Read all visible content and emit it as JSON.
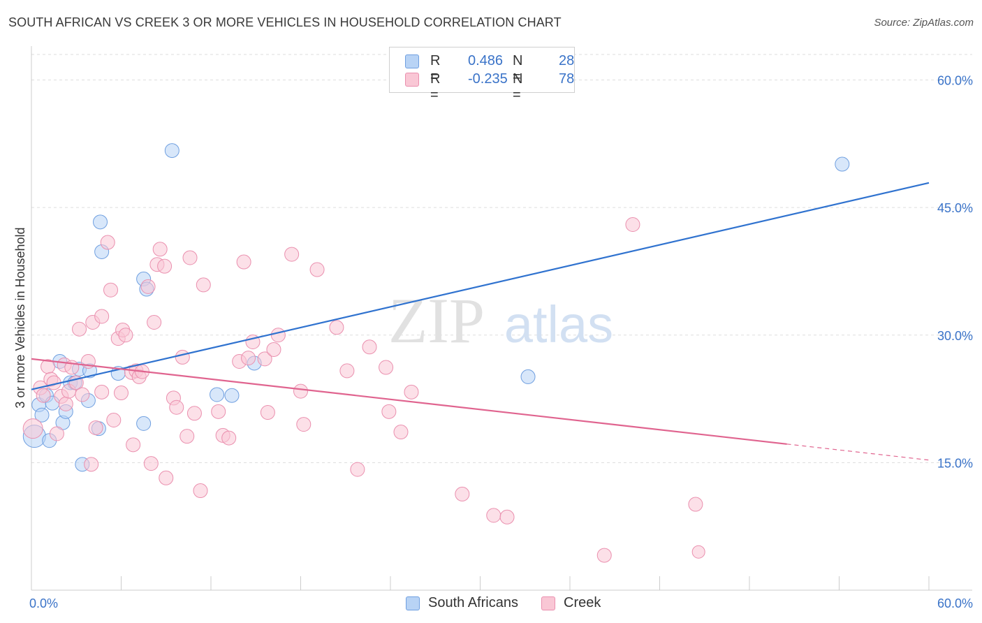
{
  "header": {
    "title": "SOUTH AFRICAN VS CREEK 3 OR MORE VEHICLES IN HOUSEHOLD CORRELATION CHART",
    "source": "Source: ZipAtlas.com"
  },
  "watermark": {
    "zip": "ZIP",
    "atlas": "atlas"
  },
  "legend": {
    "rows": [
      {
        "r_label": "R =",
        "r_value": "0.486",
        "n_label": "N =",
        "n_value": "28"
      },
      {
        "r_label": "R =",
        "r_value": "-0.235",
        "n_label": "N =",
        "n_value": "78"
      }
    ]
  },
  "bottom_legend": {
    "south_africans": "South Africans",
    "creek": "Creek"
  },
  "colors": {
    "south_africans_fill": "#b8d3f5",
    "south_africans_stroke": "#6f9fe0",
    "south_africans_line": "#2f72cf",
    "creek_fill": "#f9c7d5",
    "creek_stroke": "#ea8fae",
    "creek_line": "#e0648f",
    "tick_label": "#3a73c8",
    "grid": "#dddddd"
  },
  "chart_data": {
    "type": "scatter",
    "title": "SOUTH AFRICAN VS CREEK 3 OR MORE VEHICLES IN HOUSEHOLD CORRELATION CHART",
    "xlabel": "",
    "ylabel": "3 or more Vehicles in Household",
    "xlim": [
      0,
      60
    ],
    "ylim": [
      0,
      63
    ],
    "x_tick_labels": [
      "0.0%",
      "60.0%"
    ],
    "y_ticks": [
      15,
      30,
      45,
      60
    ],
    "y_tick_labels": [
      "15.0%",
      "30.0%",
      "45.0%",
      "60.0%"
    ],
    "grid": true,
    "legend_position": "top-center",
    "series": [
      {
        "name": "South Africans",
        "r": 0.486,
        "n": 28,
        "trend": {
          "x": [
            0,
            60
          ],
          "y": [
            23.6,
            47.9
          ],
          "dashed_from": null
        },
        "points": [
          [
            0.2,
            18.1,
            16
          ],
          [
            0.5,
            21.8,
            10
          ],
          [
            0.7,
            20.6,
            10
          ],
          [
            1.0,
            22.9,
            10
          ],
          [
            1.2,
            17.6,
            10
          ],
          [
            1.4,
            22.0,
            10
          ],
          [
            1.9,
            26.9,
            10
          ],
          [
            2.1,
            19.7,
            10
          ],
          [
            2.3,
            21.0,
            10
          ],
          [
            2.6,
            24.4,
            10
          ],
          [
            2.9,
            24.4,
            10
          ],
          [
            3.2,
            26.0,
            10
          ],
          [
            3.4,
            14.8,
            10
          ],
          [
            3.8,
            22.3,
            10
          ],
          [
            3.9,
            25.8,
            10
          ],
          [
            4.5,
            19.0,
            10
          ],
          [
            4.6,
            43.3,
            10
          ],
          [
            4.7,
            39.8,
            10
          ],
          [
            5.8,
            25.5,
            10
          ],
          [
            7.5,
            36.6,
            10
          ],
          [
            7.5,
            19.6,
            10
          ],
          [
            7.7,
            35.4,
            10
          ],
          [
            9.4,
            51.7,
            10
          ],
          [
            12.4,
            23.0,
            10
          ],
          [
            13.4,
            22.9,
            10
          ],
          [
            14.9,
            26.7,
            10
          ],
          [
            33.2,
            25.1,
            10
          ],
          [
            54.2,
            50.1,
            10
          ]
        ]
      },
      {
        "name": "Creek",
        "r": -0.235,
        "n": 78,
        "trend": {
          "x": [
            0,
            60
          ],
          "y": [
            27.2,
            15.3
          ],
          "dashed_from": 50.5
        },
        "points": [
          [
            0.1,
            19.0,
            14
          ],
          [
            0.6,
            23.8,
            10
          ],
          [
            0.8,
            22.9,
            10
          ],
          [
            1.1,
            26.3,
            10
          ],
          [
            1.3,
            24.8,
            10
          ],
          [
            1.5,
            24.4,
            10
          ],
          [
            1.7,
            18.4,
            10
          ],
          [
            2.0,
            22.8,
            10
          ],
          [
            2.2,
            26.5,
            10
          ],
          [
            2.3,
            21.9,
            10
          ],
          [
            2.5,
            23.4,
            10
          ],
          [
            2.7,
            26.2,
            10
          ],
          [
            3.0,
            24.4,
            10
          ],
          [
            3.2,
            30.7,
            10
          ],
          [
            3.4,
            23.0,
            10
          ],
          [
            3.8,
            26.9,
            10
          ],
          [
            4.0,
            14.8,
            10
          ],
          [
            4.1,
            31.5,
            10
          ],
          [
            4.3,
            19.1,
            10
          ],
          [
            4.7,
            32.2,
            10
          ],
          [
            4.7,
            23.3,
            10
          ],
          [
            5.1,
            40.9,
            10
          ],
          [
            5.3,
            35.3,
            10
          ],
          [
            5.5,
            20.0,
            10
          ],
          [
            5.8,
            29.6,
            10
          ],
          [
            6.0,
            23.2,
            10
          ],
          [
            6.1,
            30.6,
            10
          ],
          [
            6.3,
            30.0,
            10
          ],
          [
            6.7,
            25.6,
            10
          ],
          [
            6.8,
            17.1,
            10
          ],
          [
            7.0,
            25.8,
            10
          ],
          [
            7.2,
            25.1,
            10
          ],
          [
            7.4,
            25.7,
            10
          ],
          [
            7.8,
            35.7,
            10
          ],
          [
            8.0,
            14.9,
            10
          ],
          [
            8.2,
            31.5,
            10
          ],
          [
            8.4,
            38.3,
            10
          ],
          [
            8.6,
            40.1,
            10
          ],
          [
            8.9,
            38.1,
            10
          ],
          [
            9.0,
            13.2,
            10
          ],
          [
            9.5,
            22.6,
            10
          ],
          [
            9.7,
            21.5,
            10
          ],
          [
            10.1,
            27.4,
            10
          ],
          [
            10.4,
            18.1,
            10
          ],
          [
            10.6,
            39.1,
            10
          ],
          [
            10.9,
            20.8,
            10
          ],
          [
            11.3,
            11.7,
            10
          ],
          [
            11.5,
            35.9,
            10
          ],
          [
            12.5,
            21.0,
            10
          ],
          [
            12.8,
            18.2,
            10
          ],
          [
            13.2,
            17.9,
            10
          ],
          [
            13.9,
            26.9,
            10
          ],
          [
            14.2,
            38.6,
            10
          ],
          [
            14.5,
            27.3,
            10
          ],
          [
            14.8,
            29.2,
            10
          ],
          [
            15.6,
            27.2,
            10
          ],
          [
            15.8,
            20.9,
            10
          ],
          [
            16.2,
            28.3,
            10
          ],
          [
            16.5,
            30.0,
            10
          ],
          [
            17.4,
            39.5,
            10
          ],
          [
            18.0,
            23.4,
            10
          ],
          [
            18.2,
            19.5,
            10
          ],
          [
            19.1,
            37.7,
            10
          ],
          [
            20.4,
            30.9,
            10
          ],
          [
            21.1,
            25.8,
            10
          ],
          [
            21.8,
            14.2,
            10
          ],
          [
            22.6,
            28.6,
            10
          ],
          [
            23.7,
            26.2,
            10
          ],
          [
            23.9,
            21.0,
            10
          ],
          [
            24.7,
            18.6,
            10
          ],
          [
            25.4,
            23.3,
            10
          ],
          [
            28.8,
            11.3,
            10
          ],
          [
            30.9,
            8.8,
            10
          ],
          [
            31.8,
            8.6,
            10
          ],
          [
            38.3,
            4.1,
            10
          ],
          [
            40.2,
            43.0,
            10
          ],
          [
            44.4,
            10.1,
            10
          ],
          [
            44.6,
            4.5,
            0
          ]
        ]
      }
    ]
  }
}
